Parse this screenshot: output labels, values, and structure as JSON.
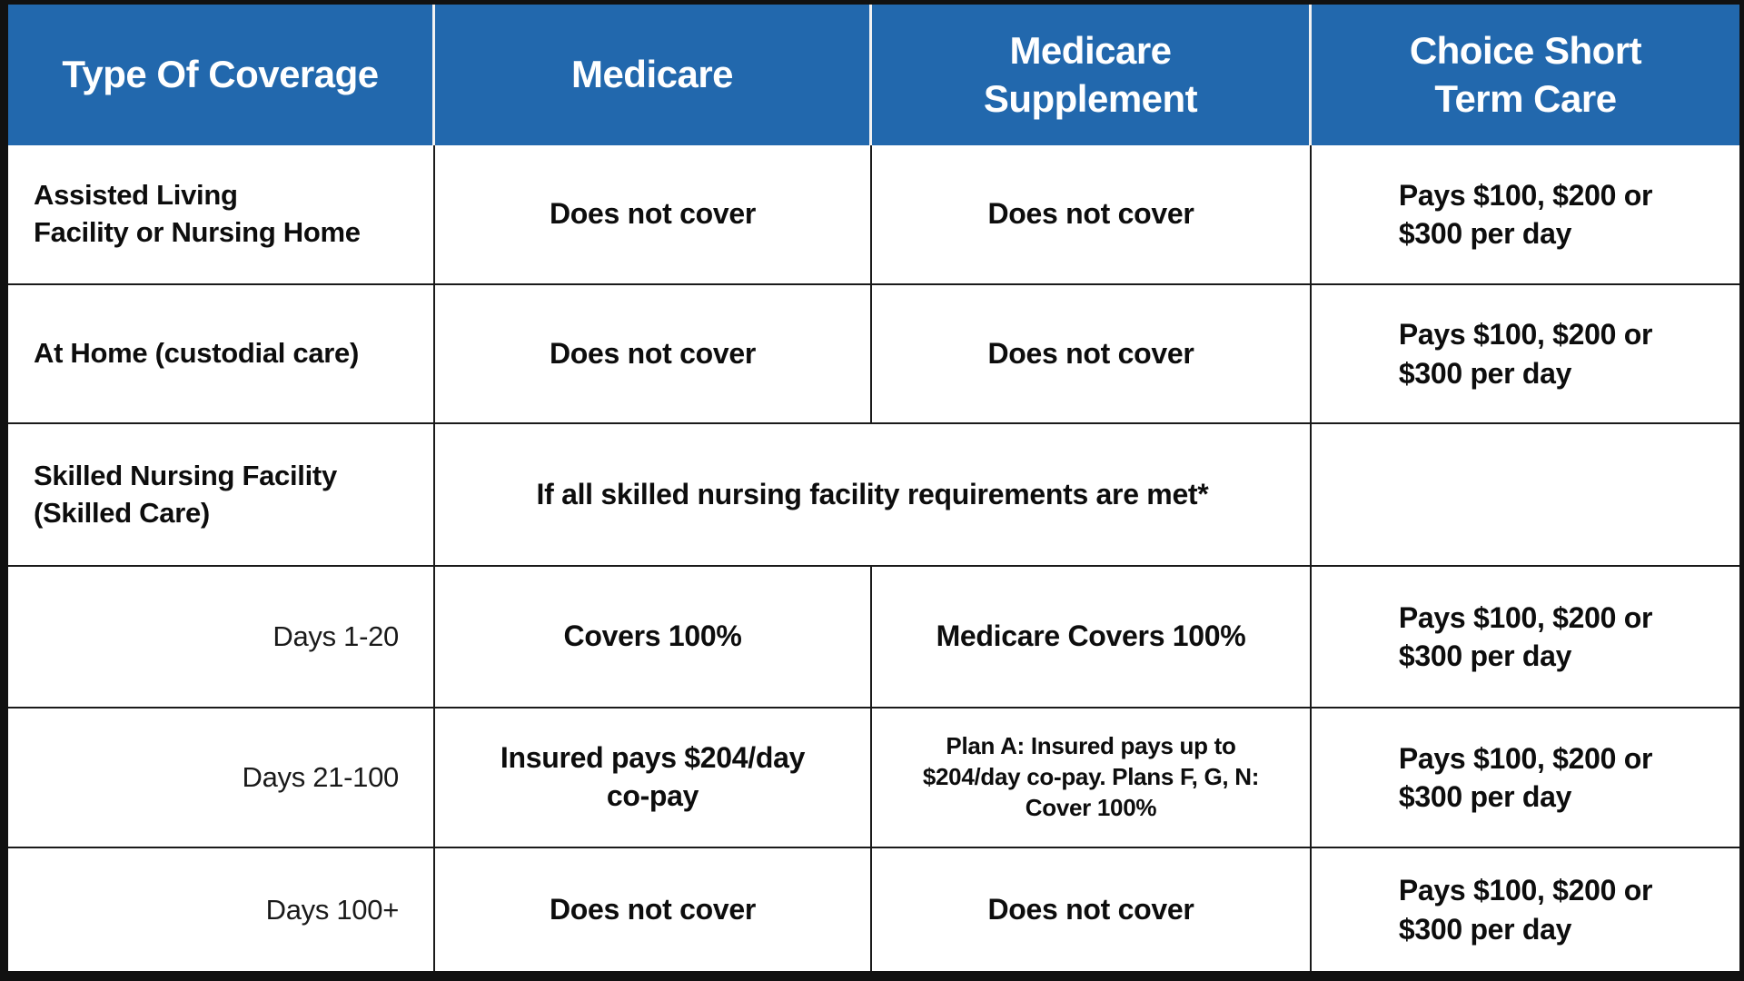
{
  "meta": {
    "description": "Coverage comparison table: Medicare vs Medicare Supplement vs Choice Short Term Care"
  },
  "colors": {
    "header_bg": "#2268ad",
    "header_text": "#ffffff",
    "body_text": "#0d0d0d",
    "border": "#1a1a1a"
  },
  "header": {
    "type_of_coverage": "Type Of Coverage",
    "medicare": "Medicare",
    "medicare_supplement": "Medicare\nSupplement",
    "choice_short_term_care": "Choice Short\nTerm Care"
  },
  "rows": {
    "assisted_living": {
      "label": "Assisted Living\nFacility or Nursing Home",
      "medicare": "Does not cover",
      "supplement": "Does not cover",
      "choice": "Pays $100, $200 or\n$300 per day"
    },
    "at_home": {
      "label": "At Home (custodial care)",
      "medicare": "Does not cover",
      "supplement": "Does not cover",
      "choice": "Pays $100, $200 or\n$300 per day"
    },
    "skilled_nursing": {
      "label": "Skilled Nursing Facility\n(Skilled Care)",
      "merged_note": "If all skilled nursing facility requirements are met*",
      "choice": ""
    },
    "days_1_20": {
      "label": "Days 1-20",
      "medicare": "Covers 100%",
      "supplement": "Medicare Covers 100%",
      "choice": "Pays $100, $200 or\n$300 per day"
    },
    "days_21_100": {
      "label": "Days 21-100",
      "medicare": "Insured pays $204/day\nco-pay",
      "supplement": "Plan A: Insured pays up to\n$204/day co-pay. Plans F, G, N:\nCover 100%",
      "choice": "Pays $100, $200 or\n$300 per day"
    },
    "days_100_plus": {
      "label": "Days 100+",
      "medicare": "Does not cover",
      "supplement": "Does not cover",
      "choice": "Pays $100, $200 or\n$300 per day"
    }
  }
}
